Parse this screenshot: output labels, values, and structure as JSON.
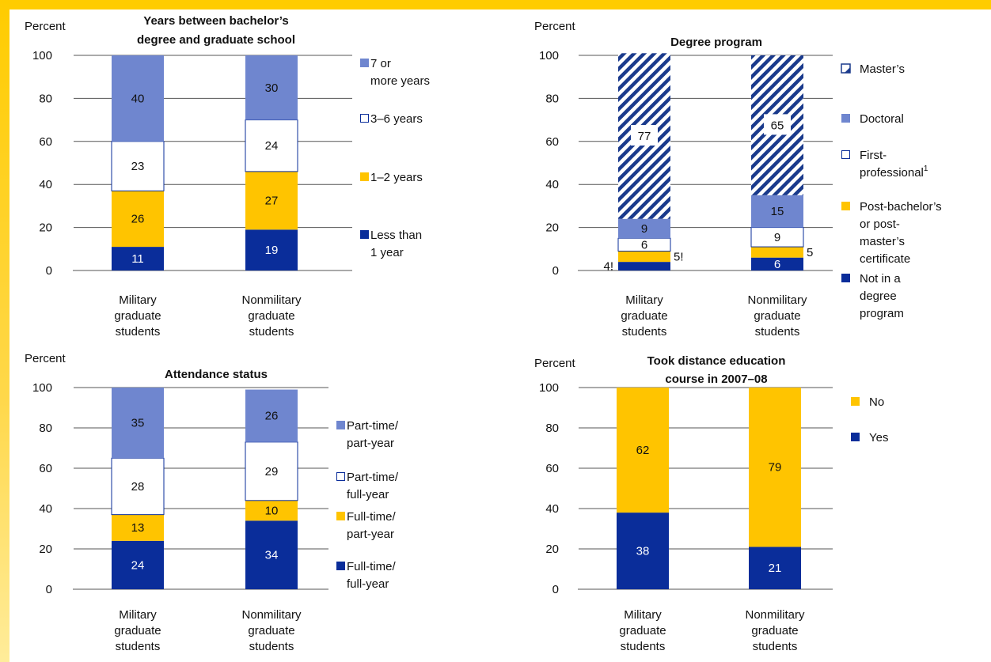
{
  "colors": {
    "frame": "#ffcc00",
    "navy": "#0a2d9a",
    "medium_blue": "#6f86cf",
    "gold": "#ffc400",
    "white": "#ffffff",
    "grid": "#555555",
    "hatch": "#1a3a8c"
  },
  "chart_data": [
    {
      "type": "bar",
      "stacked": true,
      "title": "Years between bachelor’s degree and graduate school",
      "title_lines": [
        "Years between bachelor’s",
        "degree and graduate school"
      ],
      "ylabel": "Percent",
      "ylim": [
        0,
        100
      ],
      "yticks": [
        "0",
        "20",
        "40",
        "60",
        "80",
        "100"
      ],
      "grid": true,
      "legend_placement": "right",
      "categories": [
        "Military graduate students",
        "Nonmilitary graduate students"
      ],
      "category_lines": [
        [
          "Military",
          "graduate",
          "students"
        ],
        [
          "Nonmilitary",
          "graduate",
          "students"
        ]
      ],
      "series": [
        {
          "name": "Less than 1 year",
          "legend_lines": [
            "Less than",
            "1 year"
          ],
          "color": "navy",
          "values": [
            11,
            19
          ],
          "labels": [
            "11",
            "19"
          ]
        },
        {
          "name": "1–2 years",
          "legend_lines": [
            "1–2 years"
          ],
          "color": "gold",
          "values": [
            26,
            27
          ],
          "labels": [
            "26",
            "27"
          ]
        },
        {
          "name": "3–6 years",
          "legend_lines": [
            "3–6 years"
          ],
          "color": "white",
          "values": [
            23,
            24
          ],
          "labels": [
            "23",
            "24"
          ]
        },
        {
          "name": "7 or more years",
          "legend_lines": [
            "7 or",
            "more years"
          ],
          "color": "medium_blue",
          "values": [
            40,
            30
          ],
          "labels": [
            "40",
            "30"
          ]
        }
      ]
    },
    {
      "type": "bar",
      "stacked": true,
      "title": "Degree program",
      "title_lines": [
        "Degree program"
      ],
      "ylabel": "Percent",
      "ylim": [
        0,
        100
      ],
      "yticks": [
        "0",
        "20",
        "40",
        "60",
        "80",
        "100"
      ],
      "grid": true,
      "legend_placement": "right",
      "categories": [
        "Military graduate students",
        "Nonmilitary graduate students"
      ],
      "category_lines": [
        [
          "Military",
          "graduate",
          "students"
        ],
        [
          "Nonmilitary",
          "graduate",
          "students"
        ]
      ],
      "series": [
        {
          "name": "Not in a degree program",
          "legend_lines": [
            "Not in a",
            "degree",
            "program"
          ],
          "color": "navy",
          "values": [
            4,
            6
          ],
          "labels": [
            "4!",
            "6"
          ]
        },
        {
          "name": "Post-bachelor’s or post-master’s certificate",
          "legend_lines": [
            "Post-bachelor’s",
            "or post-",
            "master’s",
            "certificate"
          ],
          "color": "gold",
          "values": [
            5,
            5
          ],
          "labels": [
            "5!",
            "5"
          ]
        },
        {
          "name": "First-professional",
          "legend_lines": [
            "First-",
            "professional"
          ],
          "legend_sup": "1",
          "color": "white",
          "values": [
            6,
            9
          ],
          "labels": [
            "6",
            "9"
          ]
        },
        {
          "name": "Doctoral",
          "legend_lines": [
            "Doctoral"
          ],
          "color": "medium_blue",
          "values": [
            9,
            15
          ],
          "labels": [
            "9",
            "15"
          ]
        },
        {
          "name": "Master’s",
          "legend_lines": [
            "Master’s"
          ],
          "color": "hatch",
          "values": [
            77,
            65
          ],
          "labels": [
            "77",
            "65"
          ]
        }
      ]
    },
    {
      "type": "bar",
      "stacked": true,
      "title": "Attendance status",
      "title_lines": [
        "Attendance status"
      ],
      "ylabel": "Percent",
      "ylim": [
        0,
        100
      ],
      "yticks": [
        "0",
        "20",
        "40",
        "60",
        "80",
        "100"
      ],
      "grid": true,
      "legend_placement": "right",
      "categories": [
        "Military graduate students",
        "Nonmilitary graduate students"
      ],
      "category_lines": [
        [
          "Military",
          "graduate",
          "students"
        ],
        [
          "Nonmilitary",
          "graduate",
          "students"
        ]
      ],
      "series": [
        {
          "name": "Full-time/full-year",
          "legend_lines": [
            "Full-time/",
            "full-year"
          ],
          "color": "navy",
          "values": [
            24,
            34
          ],
          "labels": [
            "24",
            "34"
          ]
        },
        {
          "name": "Full-time/part-year",
          "legend_lines": [
            "Full-time/",
            "part-year"
          ],
          "color": "gold",
          "values": [
            13,
            10
          ],
          "labels": [
            "13",
            "10"
          ]
        },
        {
          "name": "Part-time/full-year",
          "legend_lines": [
            "Part-time/",
            "full-year"
          ],
          "color": "white",
          "values": [
            28,
            29
          ],
          "labels": [
            "28",
            "29"
          ]
        },
        {
          "name": "Part-time/part-year",
          "legend_lines": [
            "Part-time/",
            "part-year"
          ],
          "color": "medium_blue",
          "values": [
            35,
            26
          ],
          "labels": [
            "35",
            "26"
          ]
        }
      ]
    },
    {
      "type": "bar",
      "stacked": true,
      "title": "Took distance education course in 2007–08",
      "title_lines": [
        "Took distance education",
        "course in 2007–08"
      ],
      "ylabel": "Percent",
      "ylim": [
        0,
        100
      ],
      "yticks": [
        "0",
        "20",
        "40",
        "60",
        "80",
        "100"
      ],
      "grid": true,
      "legend_placement": "right",
      "categories": [
        "Military graduate students",
        "Nonmilitary graduate students"
      ],
      "category_lines": [
        [
          "Military",
          "graduate",
          "students"
        ],
        [
          "Nonmilitary",
          "graduate",
          "students"
        ]
      ],
      "series": [
        {
          "name": "Yes",
          "legend_lines": [
            "Yes"
          ],
          "color": "navy",
          "values": [
            38,
            21
          ],
          "labels": [
            "38",
            "21"
          ]
        },
        {
          "name": "No",
          "legend_lines": [
            "No"
          ],
          "color": "gold",
          "values": [
            62,
            79
          ],
          "labels": [
            "62",
            "79"
          ]
        }
      ]
    }
  ]
}
